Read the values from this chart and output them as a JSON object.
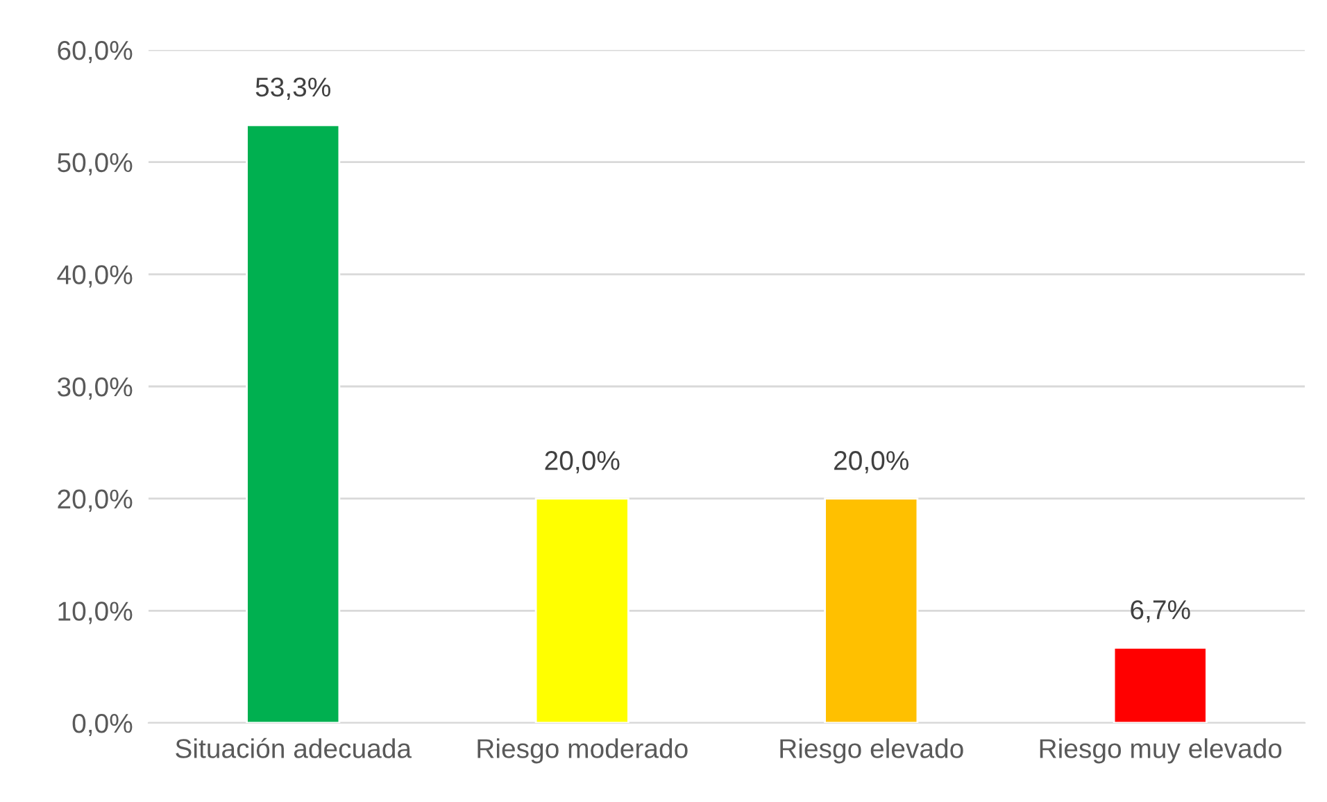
{
  "chart_data": {
    "type": "bar",
    "categories": [
      "Situación adecuada",
      "Riesgo moderado",
      "Riesgo elevado",
      "Riesgo muy elevado"
    ],
    "values": [
      53.3,
      20.0,
      20.0,
      6.7
    ],
    "colors": [
      "#00b050",
      "#ffff00",
      "#ffc000",
      "#ff0000"
    ],
    "value_labels": [
      "53,3%",
      "20,0%",
      "20,0%",
      "6,7%"
    ],
    "ylim": [
      0,
      60
    ],
    "yticks": [
      {
        "value": 0,
        "label": "0,0%"
      },
      {
        "value": 10,
        "label": "10,0%"
      },
      {
        "value": 20,
        "label": "20,0%"
      },
      {
        "value": 30,
        "label": "30,0%"
      },
      {
        "value": 40,
        "label": "40,0%"
      },
      {
        "value": 50,
        "label": "50,0%"
      },
      {
        "value": 60,
        "label": "60,0%"
      }
    ],
    "grid": "y",
    "legend": false
  }
}
